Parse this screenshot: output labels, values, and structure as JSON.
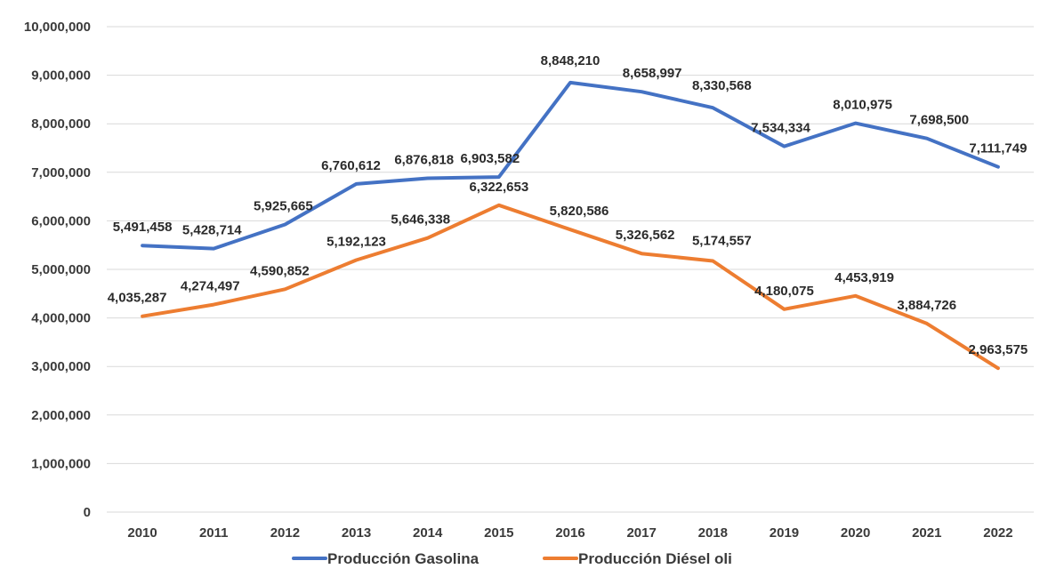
{
  "chart_data": {
    "type": "line",
    "title": "",
    "xlabel": "",
    "ylabel": "",
    "ylim": [
      0,
      10000000
    ],
    "y_ticks": [
      0,
      1000000,
      2000000,
      3000000,
      4000000,
      5000000,
      6000000,
      7000000,
      8000000,
      9000000,
      10000000
    ],
    "y_tick_labels": [
      "0",
      "1,000,000",
      "2,000,000",
      "3,000,000",
      "4,000,000",
      "5,000,000",
      "6,000,000",
      "7,000,000",
      "8,000,000",
      "9,000,000",
      "10,000,000"
    ],
    "grid": true,
    "legend_position": "bottom",
    "categories": [
      "2010",
      "2011",
      "2012",
      "2013",
      "2014",
      "2015",
      "2016",
      "2017",
      "2018",
      "2019",
      "2020",
      "2021",
      "2022"
    ],
    "series": [
      {
        "name": "Producción Gasolina",
        "color": "#4472c4",
        "values": [
          5491458,
          5428714,
          5925665,
          6760612,
          6876818,
          6903582,
          8848210,
          8658997,
          8330568,
          7534334,
          8010975,
          7698500,
          7111749
        ],
        "labels": [
          "5,491,458",
          "5,428,714",
          "5,925,665",
          "6,760,612",
          "6,876,818",
          "6,903,582",
          "8,848,210",
          "8,658,997",
          "8,330,568",
          "7,534,334",
          "8,010,975",
          "7,698,500",
          "7,111,749"
        ]
      },
      {
        "name": "Producción Diésel oli",
        "color": "#ed7d31",
        "values": [
          4035287,
          4274497,
          4590852,
          5192123,
          5646338,
          6322653,
          5820586,
          5326562,
          5174557,
          4180075,
          4453919,
          3884726,
          2963575
        ],
        "labels": [
          "4,035,287",
          "4,274,497",
          "4,590,852",
          "5,192,123",
          "5,646,338",
          "6,322,653",
          "5,820,586",
          "5,326,562",
          "5,174,557",
          "4,180,075",
          "4,453,919",
          "3,884,726",
          "2,963,575"
        ]
      }
    ]
  }
}
